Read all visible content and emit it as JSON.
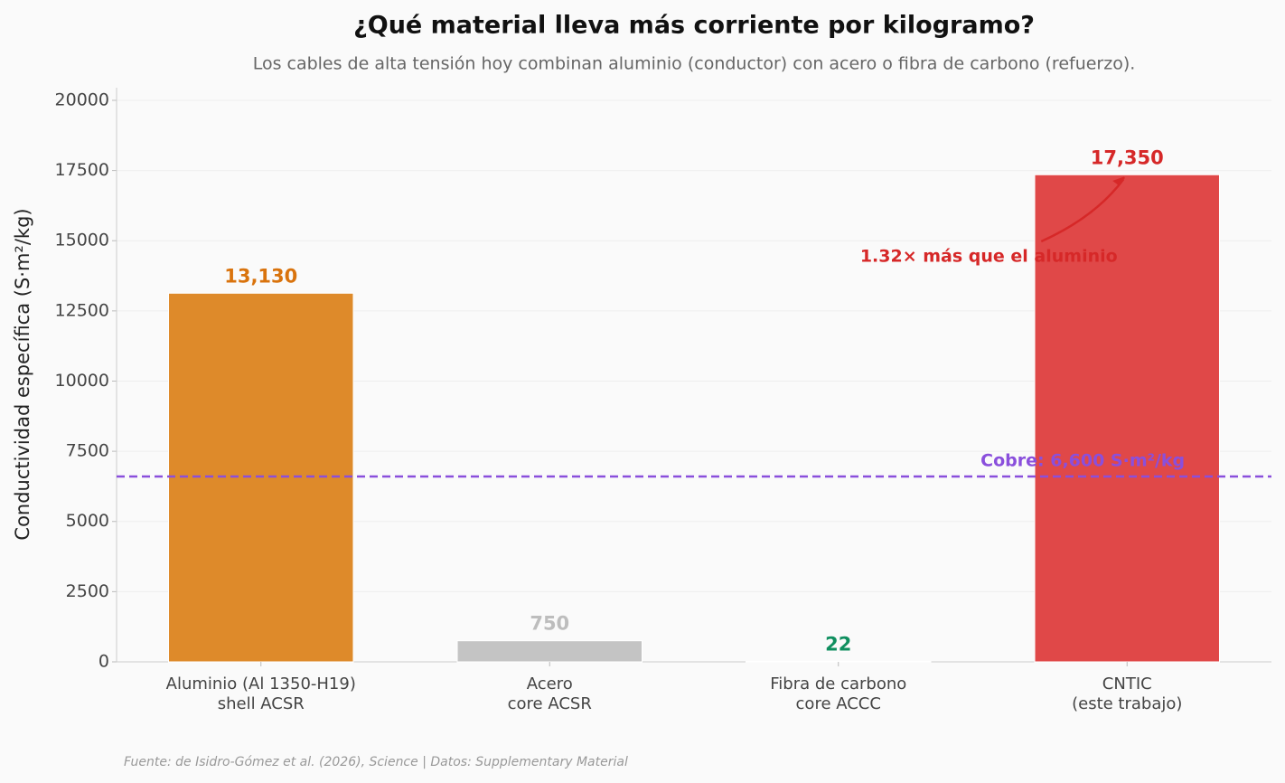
{
  "chart_data": {
    "type": "bar",
    "title": "¿Qué material lleva más corriente por kilogramo?",
    "subtitle": "Los cables de alta tensión hoy combinan aluminio (conductor) con acero o fibra de carbono (refuerzo).",
    "y_label": "Conductividad específica (S·m²/kg)",
    "categories": [
      [
        "Aluminio (Al 1350-H19)",
        "shell ACSR"
      ],
      [
        "Acero",
        "core ACSR"
      ],
      [
        "Fibra de carbono",
        "core ACCC"
      ],
      [
        "CNTIC",
        "(este trabajo)"
      ]
    ],
    "values": [
      13130,
      750,
      22,
      17350
    ],
    "value_labels": [
      "13,130",
      "750",
      "22",
      "17,350"
    ],
    "colors": [
      "#de8a2a",
      "#c4c4c4",
      "#2aa876",
      "#e04848"
    ],
    "label_colors": [
      "#d9730d",
      "#bdbdbd",
      "#0f8f5f",
      "#d62828"
    ],
    "reference_line": {
      "value": 6600,
      "label": "Cobre: 6,600 S·m²/kg",
      "color": "#8a4fdc"
    },
    "annotation": {
      "text": "1.32× más que el aluminio",
      "color": "#d62828"
    },
    "source": "Fuente: de Isidro-Gómez et al. (2026), Science | Datos: Supplementary Material",
    "ylim": [
      0,
      20450
    ],
    "yticks": [
      0,
      2500,
      5000,
      7500,
      10000,
      12500,
      15000,
      17500,
      20000
    ],
    "grid": true
  }
}
